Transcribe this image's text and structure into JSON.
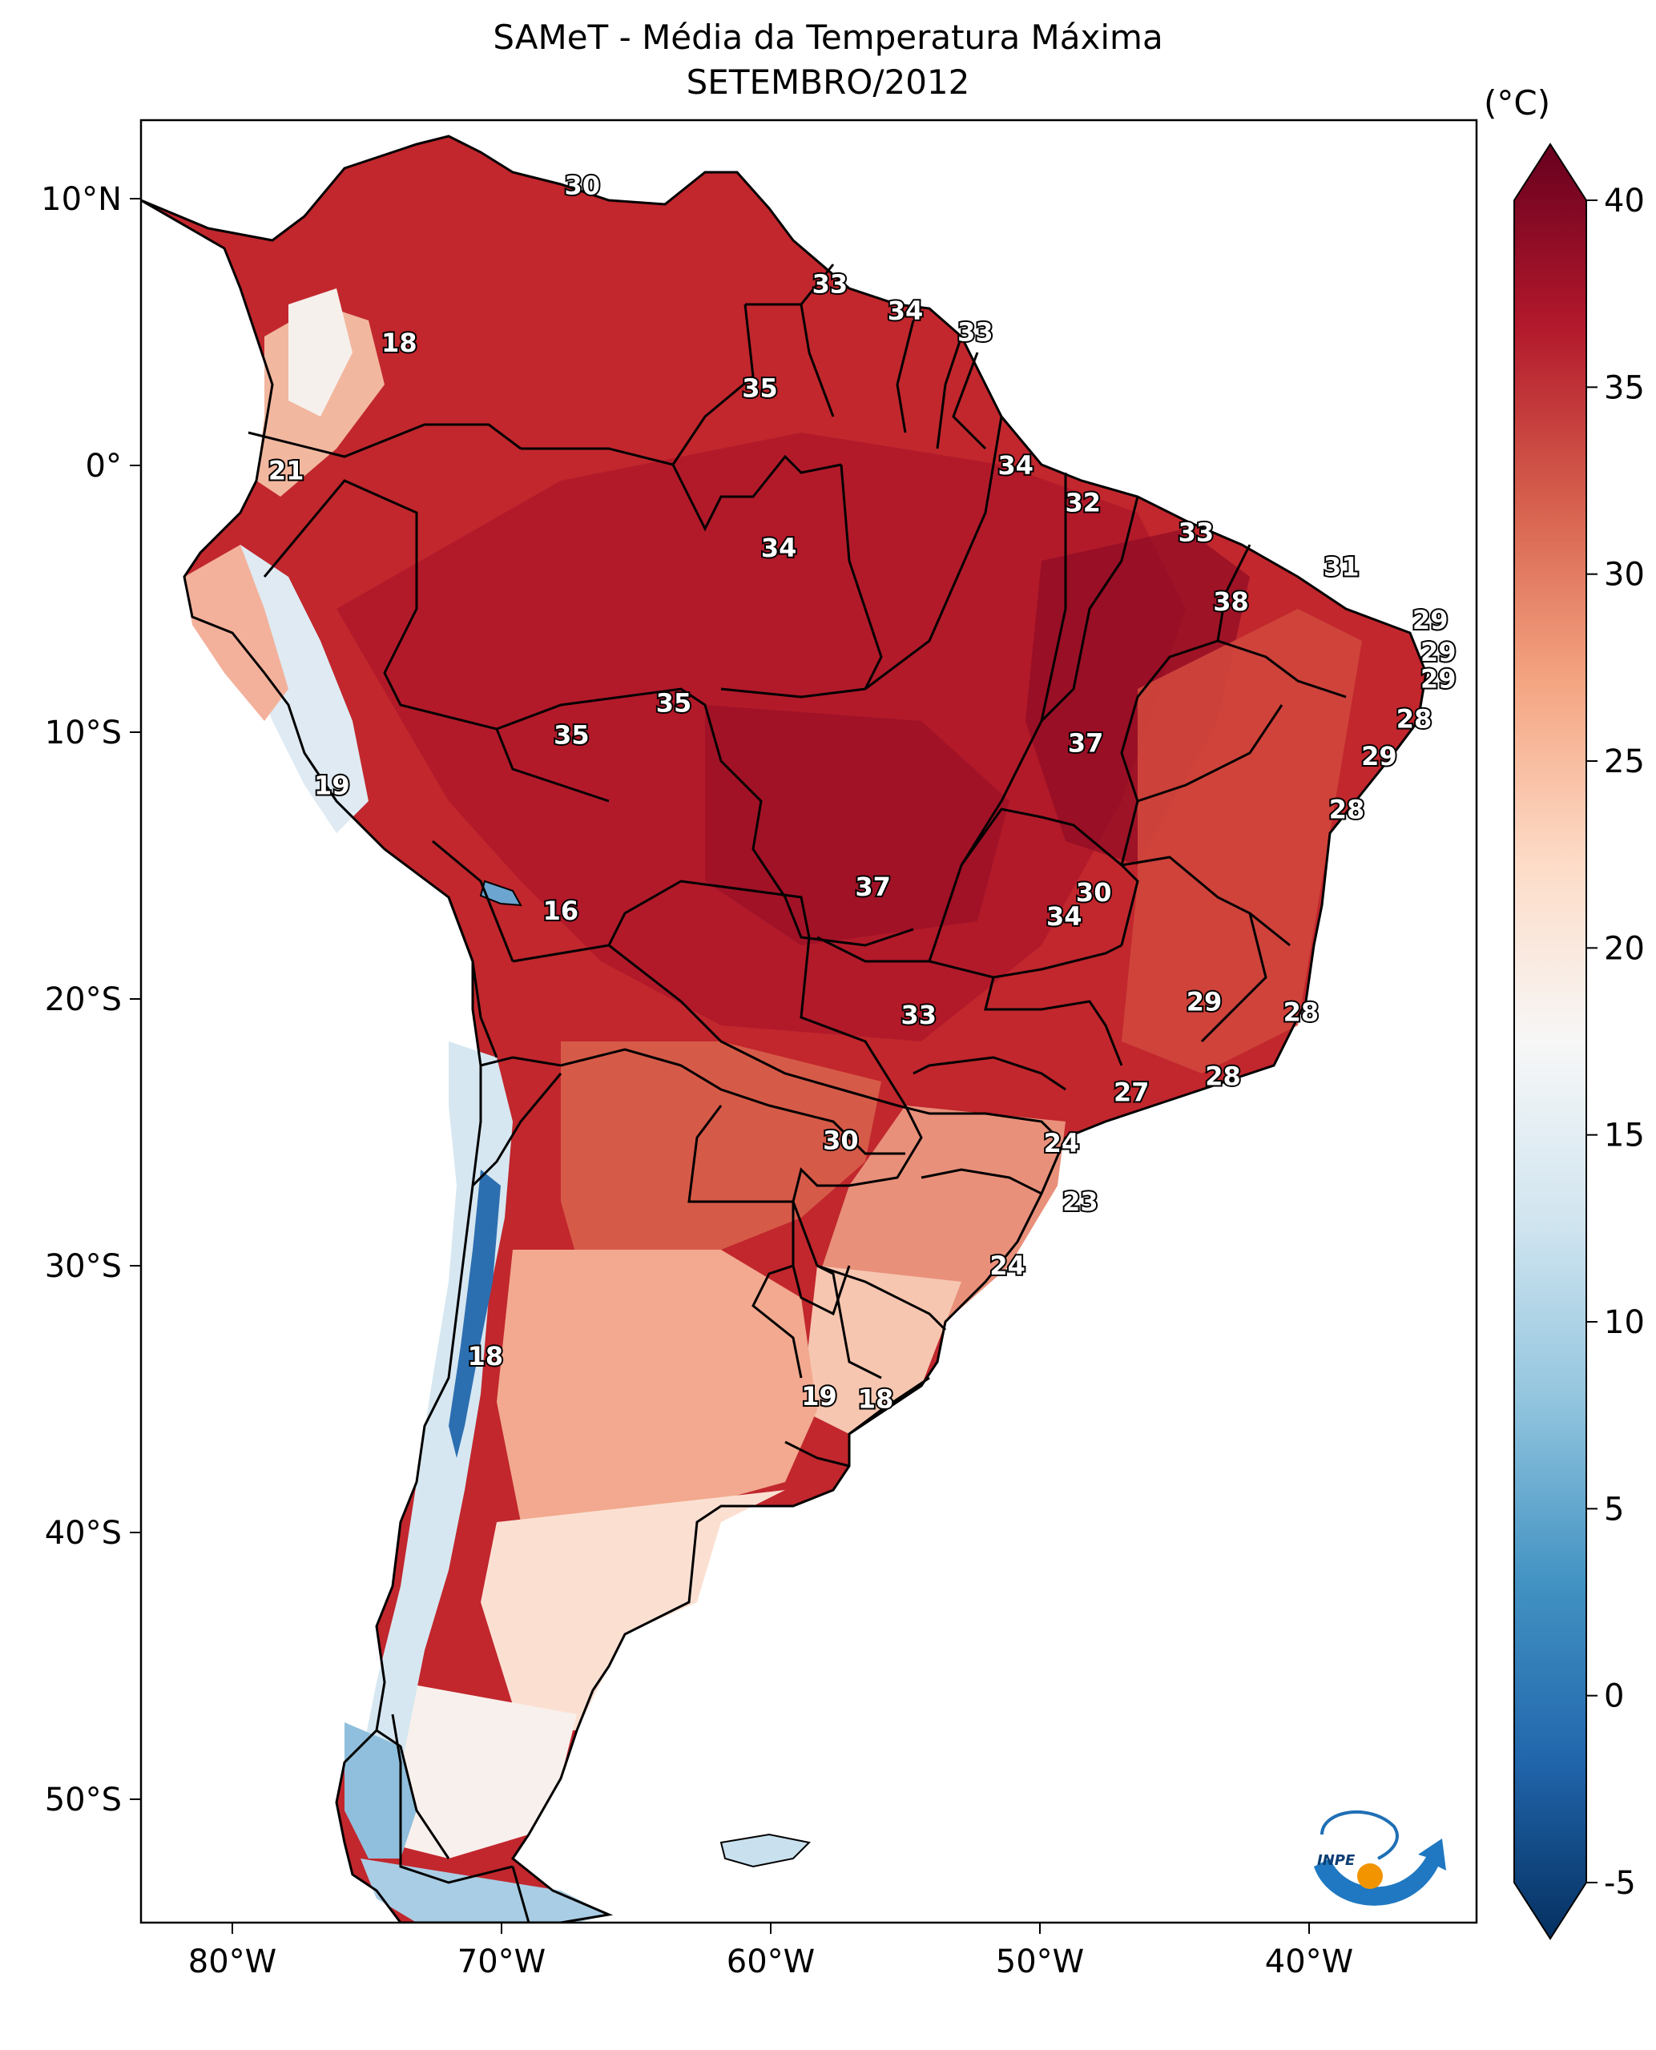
{
  "title": "SAMeT - Média da Temperatura Máxima",
  "subtitle": "SETEMBRO/2012",
  "colorbar": {
    "unit": "(°C)",
    "min": -5,
    "max": 40,
    "ticks": [
      "40",
      "35",
      "30",
      "25",
      "20",
      "15",
      "10",
      "5",
      "0",
      "-5"
    ],
    "colors": [
      "#67001f",
      "#b2182b",
      "#d6604d",
      "#f4a582",
      "#fddbc7",
      "#f7f7f7",
      "#d1e5f0",
      "#92c5de",
      "#4393c3",
      "#2166ac",
      "#053061"
    ]
  },
  "axes": {
    "lon_ticks": [
      "80°W",
      "70°W",
      "60°W",
      "50°W",
      "40°W"
    ],
    "lat_ticks": [
      "10°N",
      "0°",
      "10°S",
      "20°S",
      "30°S",
      "40°S",
      "50°S"
    ]
  },
  "contour_labels": [
    {
      "text": "30",
      "lon": -67.0,
      "lat": 10.5
    },
    {
      "text": "33",
      "lon": -57.8,
      "lat": 6.8
    },
    {
      "text": "34",
      "lon": -55.0,
      "lat": 5.8
    },
    {
      "text": "33",
      "lon": -52.4,
      "lat": 5.0
    },
    {
      "text": "18",
      "lon": -73.8,
      "lat": 4.6
    },
    {
      "text": "35",
      "lon": -60.4,
      "lat": 2.9
    },
    {
      "text": "21",
      "lon": -78.0,
      "lat": -0.2
    },
    {
      "text": "34",
      "lon": -50.9,
      "lat": 0.0
    },
    {
      "text": "32",
      "lon": -48.4,
      "lat": -1.4
    },
    {
      "text": "33",
      "lon": -44.2,
      "lat": -2.5
    },
    {
      "text": "34",
      "lon": -59.7,
      "lat": -3.1
    },
    {
      "text": "31",
      "lon": -38.8,
      "lat": -3.8
    },
    {
      "text": "38",
      "lon": -42.9,
      "lat": -5.1
    },
    {
      "text": "29",
      "lon": -35.5,
      "lat": -5.8
    },
    {
      "text": "29",
      "lon": -35.2,
      "lat": -7.0
    },
    {
      "text": "29",
      "lon": -35.2,
      "lat": -8.0
    },
    {
      "text": "35",
      "lon": -63.6,
      "lat": -8.9
    },
    {
      "text": "28",
      "lon": -36.1,
      "lat": -9.5
    },
    {
      "text": "35",
      "lon": -67.4,
      "lat": -10.1
    },
    {
      "text": "37",
      "lon": -48.3,
      "lat": -10.4
    },
    {
      "text": "29",
      "lon": -37.4,
      "lat": -10.9
    },
    {
      "text": "19",
      "lon": -76.3,
      "lat": -12.0
    },
    {
      "text": "28",
      "lon": -38.6,
      "lat": -12.9
    },
    {
      "text": "37",
      "lon": -56.2,
      "lat": -15.8
    },
    {
      "text": "30",
      "lon": -48.0,
      "lat": -16.0
    },
    {
      "text": "34",
      "lon": -49.1,
      "lat": -16.9
    },
    {
      "text": "16",
      "lon": -67.8,
      "lat": -16.7
    },
    {
      "text": "29",
      "lon": -43.9,
      "lat": -20.1
    },
    {
      "text": "28",
      "lon": -40.3,
      "lat": -20.5
    },
    {
      "text": "33",
      "lon": -54.5,
      "lat": -20.6
    },
    {
      "text": "28",
      "lon": -43.2,
      "lat": -22.9
    },
    {
      "text": "27",
      "lon": -46.6,
      "lat": -23.5
    },
    {
      "text": "30",
      "lon": -57.4,
      "lat": -25.3
    },
    {
      "text": "24",
      "lon": -49.2,
      "lat": -25.4
    },
    {
      "text": "23",
      "lon": -48.5,
      "lat": -27.6
    },
    {
      "text": "24",
      "lon": -51.2,
      "lat": -30.0
    },
    {
      "text": "18",
      "lon": -70.6,
      "lat": -33.4
    },
    {
      "text": "19",
      "lon": -58.2,
      "lat": -34.9
    },
    {
      "text": "18",
      "lon": -56.1,
      "lat": -35.0
    }
  ]
}
